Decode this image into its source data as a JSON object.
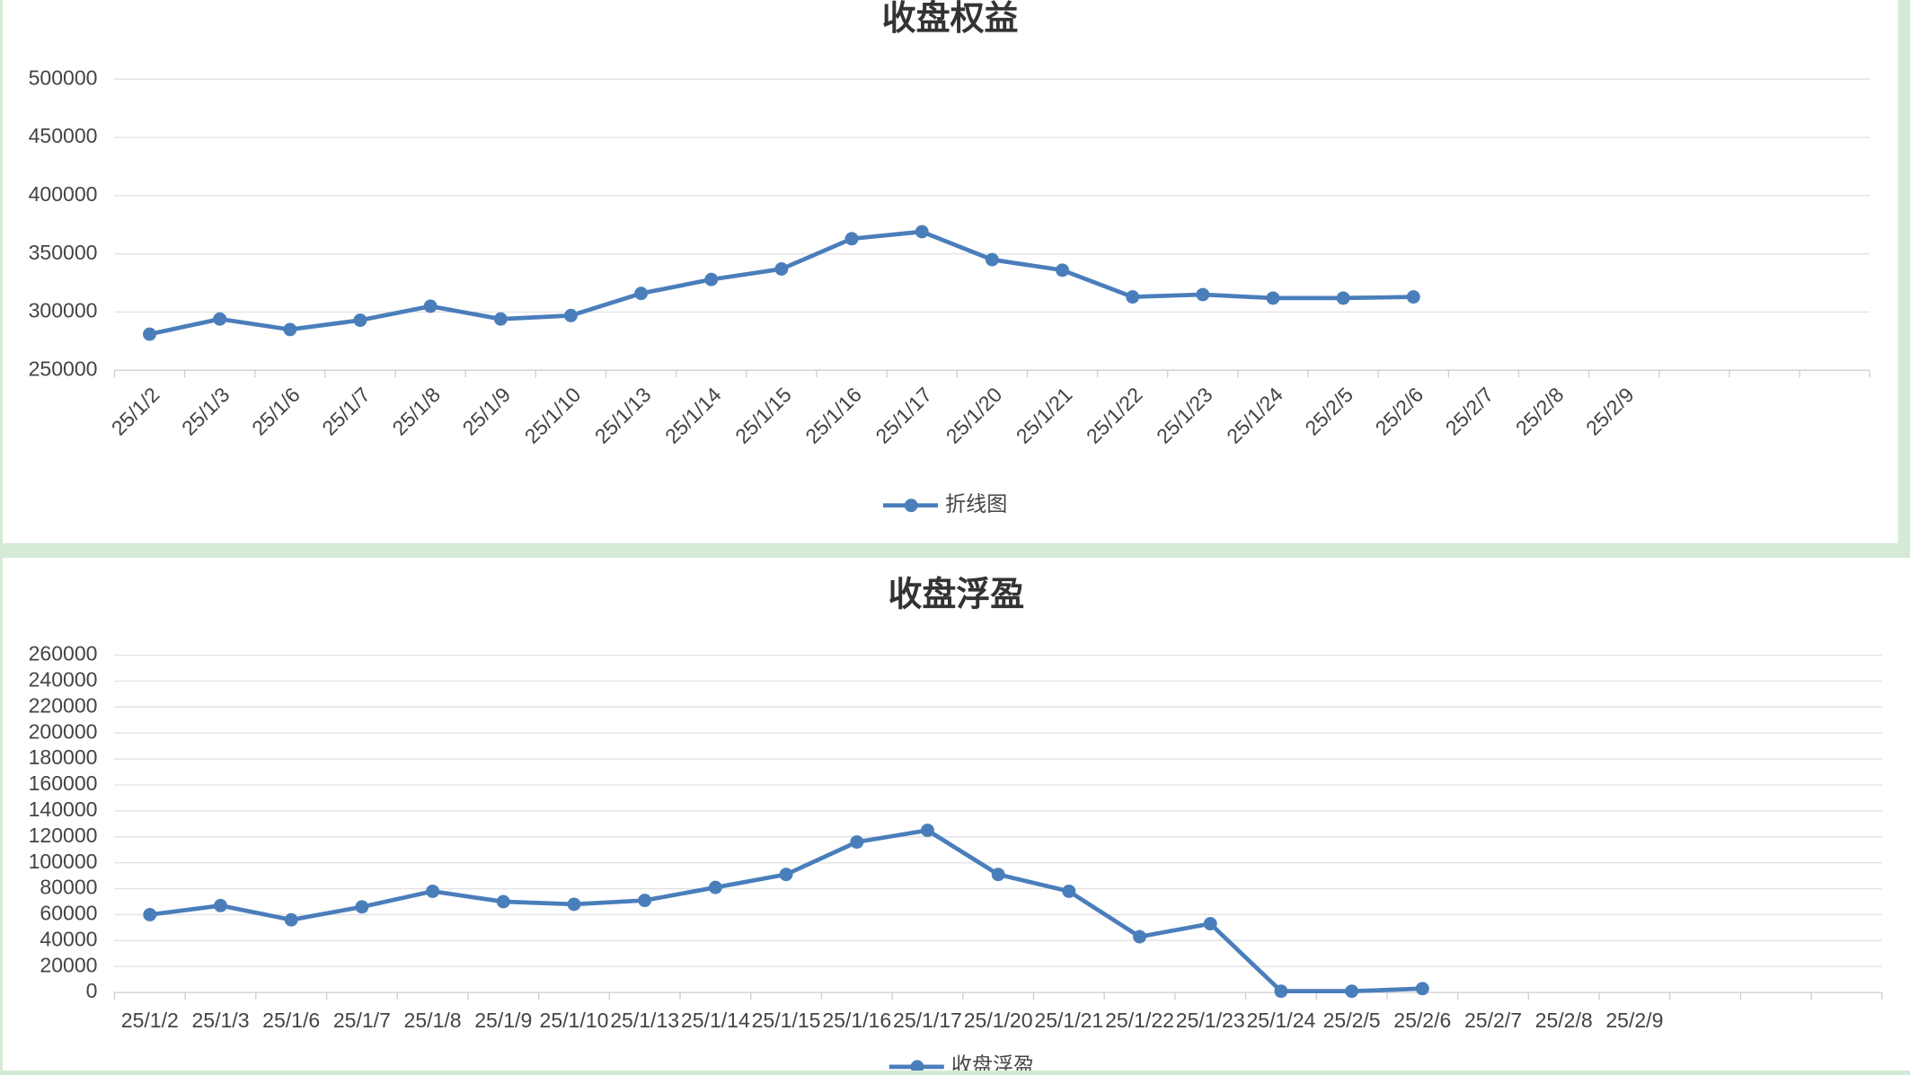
{
  "chart_data": [
    {
      "type": "line",
      "title": "收盘权益",
      "categories": [
        "25/1/2",
        "25/1/3",
        "25/1/6",
        "25/1/7",
        "25/1/8",
        "25/1/9",
        "25/1/10",
        "25/1/13",
        "25/1/14",
        "25/1/15",
        "25/1/16",
        "25/1/17",
        "25/1/20",
        "25/1/21",
        "25/1/22",
        "25/1/23",
        "25/1/24",
        "25/2/5",
        "25/2/6",
        "25/2/7",
        "25/2/8",
        "25/2/9",
        null,
        null,
        null
      ],
      "series": [
        {
          "name": "折线图",
          "color": "#4a7ebb",
          "values": [
            281000,
            294000,
            285000,
            293000,
            305000,
            294000,
            297000,
            316000,
            328000,
            337000,
            363000,
            369000,
            345000,
            336000,
            313000,
            315000,
            312000,
            312000,
            313000,
            null,
            null,
            null,
            null,
            null,
            null
          ]
        }
      ],
      "ylim": [
        250000,
        500000
      ],
      "yticks": [
        250000,
        300000,
        350000,
        400000,
        450000,
        500000
      ],
      "grid": true,
      "legend": "bottom"
    },
    {
      "type": "line",
      "title": "收盘浮盈",
      "categories": [
        "25/1/2",
        "25/1/3",
        "25/1/6",
        "25/1/7",
        "25/1/8",
        "25/1/9",
        "25/1/10",
        "25/1/13",
        "25/1/14",
        "25/1/15",
        "25/1/16",
        "25/1/17",
        "25/1/20",
        "25/1/21",
        "25/1/22",
        "25/1/23",
        "25/1/24",
        "25/2/5",
        "25/2/6",
        "25/2/7",
        "25/2/8",
        "25/2/9",
        null,
        null,
        null
      ],
      "series": [
        {
          "name": "收盘浮盈",
          "color": "#4a7ebb",
          "values": [
            60000,
            67000,
            56000,
            66000,
            78000,
            70000,
            68000,
            71000,
            81000,
            91000,
            116000,
            125000,
            91000,
            78000,
            43000,
            53000,
            1000,
            1000,
            3000,
            null,
            null,
            null,
            null,
            null,
            null
          ]
        }
      ],
      "ylim": [
        0,
        260000
      ],
      "yticks": [
        0,
        20000,
        40000,
        60000,
        80000,
        100000,
        120000,
        140000,
        160000,
        180000,
        200000,
        220000,
        240000,
        260000
      ],
      "grid": true,
      "legend": "bottom"
    }
  ]
}
